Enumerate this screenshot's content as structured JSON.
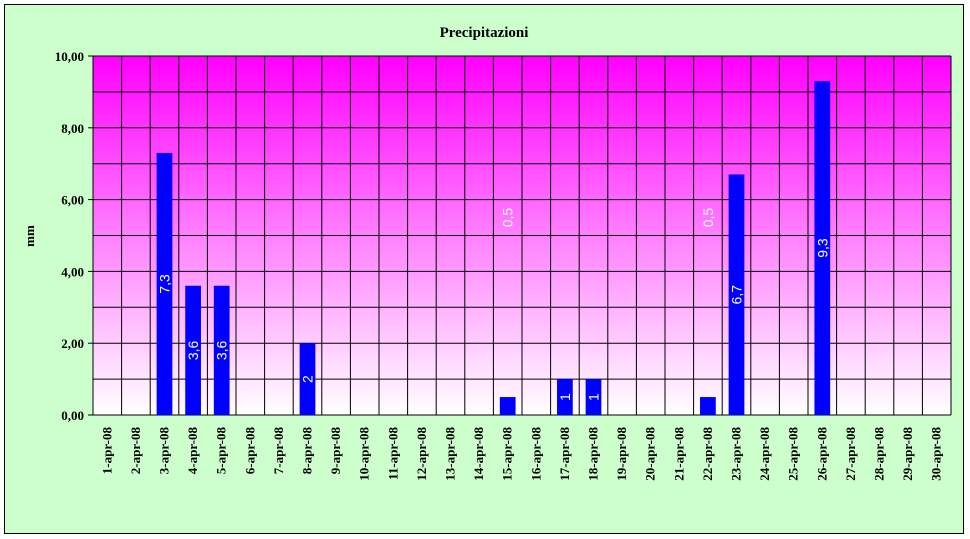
{
  "chart_data": {
    "type": "bar",
    "title": "Precipitazioni",
    "xlabel": "",
    "ylabel": "mm",
    "ylim": [
      0,
      10
    ],
    "yticks": [
      "0,00",
      "2,00",
      "4,00",
      "6,00",
      "8,00",
      "10,00"
    ],
    "categories": [
      "1-apr-08",
      "2-apr-08",
      "3-apr-08",
      "4-apr-08",
      "5-apr-08",
      "6-apr-08",
      "7-apr-08",
      "8-apr-08",
      "9-apr-08",
      "10-apr-08",
      "11-apr-08",
      "12-apr-08",
      "13-apr-08",
      "14-apr-08",
      "15-apr-08",
      "16-apr-08",
      "17-apr-08",
      "18-apr-08",
      "19-apr-08",
      "20-apr-08",
      "21-apr-08",
      "22-apr-08",
      "23-apr-08",
      "24-apr-08",
      "25-apr-08",
      "26-apr-08",
      "27-apr-08",
      "28-apr-08",
      "29-apr-08",
      "30-apr-08"
    ],
    "values": [
      0,
      0,
      7.3,
      3.6,
      3.6,
      0,
      0,
      2,
      0,
      0,
      0,
      0,
      0,
      0,
      0.5,
      0,
      1,
      1,
      0,
      0,
      0,
      0.5,
      6.7,
      0,
      0,
      9.3,
      0,
      0,
      0,
      0
    ],
    "data_labels": [
      "",
      "",
      "7,3",
      "3,6",
      "3,6",
      "",
      "",
      "2",
      "",
      "",
      "",
      "",
      "",
      "",
      "0,5",
      "",
      "1",
      "1",
      "",
      "",
      "",
      "0,5",
      "6,7",
      "",
      "",
      "9,3",
      "",
      "",
      "",
      ""
    ],
    "grid": true,
    "legend": "none",
    "colors": {
      "background": "#ccffcc",
      "plot_top": "#ff00ff",
      "plot_bottom": "#ffffff",
      "bar": "#0000ff",
      "label": "#ffffff"
    }
  }
}
